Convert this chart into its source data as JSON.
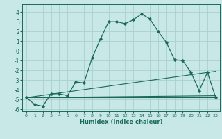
{
  "xlabel": "Humidex (Indice chaleur)",
  "bg_color": "#c8e8e8",
  "grid_color": "#a8d0d0",
  "line_color": "#1a6858",
  "xlim": [
    -0.5,
    23.5
  ],
  "ylim": [
    -6.2,
    4.8
  ],
  "xticks": [
    0,
    1,
    2,
    3,
    4,
    5,
    6,
    7,
    8,
    9,
    10,
    11,
    12,
    13,
    14,
    15,
    16,
    17,
    18,
    19,
    20,
    21,
    22,
    23
  ],
  "yticks": [
    -6,
    -5,
    -4,
    -3,
    -2,
    -1,
    0,
    1,
    2,
    3,
    4
  ],
  "line1_x": [
    0,
    1,
    2,
    3,
    4,
    5,
    6,
    7,
    8,
    9,
    10,
    11,
    12,
    13,
    14,
    15,
    16,
    17,
    18,
    19,
    20,
    21,
    22,
    23
  ],
  "line1_y": [
    -4.8,
    -5.5,
    -5.7,
    -4.4,
    -4.4,
    -4.6,
    -3.2,
    -3.3,
    -0.7,
    1.2,
    3.0,
    3.0,
    2.8,
    3.2,
    3.8,
    3.3,
    2.0,
    0.9,
    -0.9,
    -1.0,
    -2.2,
    -4.1,
    -2.2,
    -4.8
  ],
  "line3_x": [
    0,
    23
  ],
  "line3_y": [
    -4.8,
    -2.1
  ],
  "line4_x": [
    0,
    23
  ],
  "line4_y": [
    -4.8,
    -4.6
  ],
  "line5_x": [
    0,
    23
  ],
  "line5_y": [
    -4.8,
    -4.8
  ]
}
